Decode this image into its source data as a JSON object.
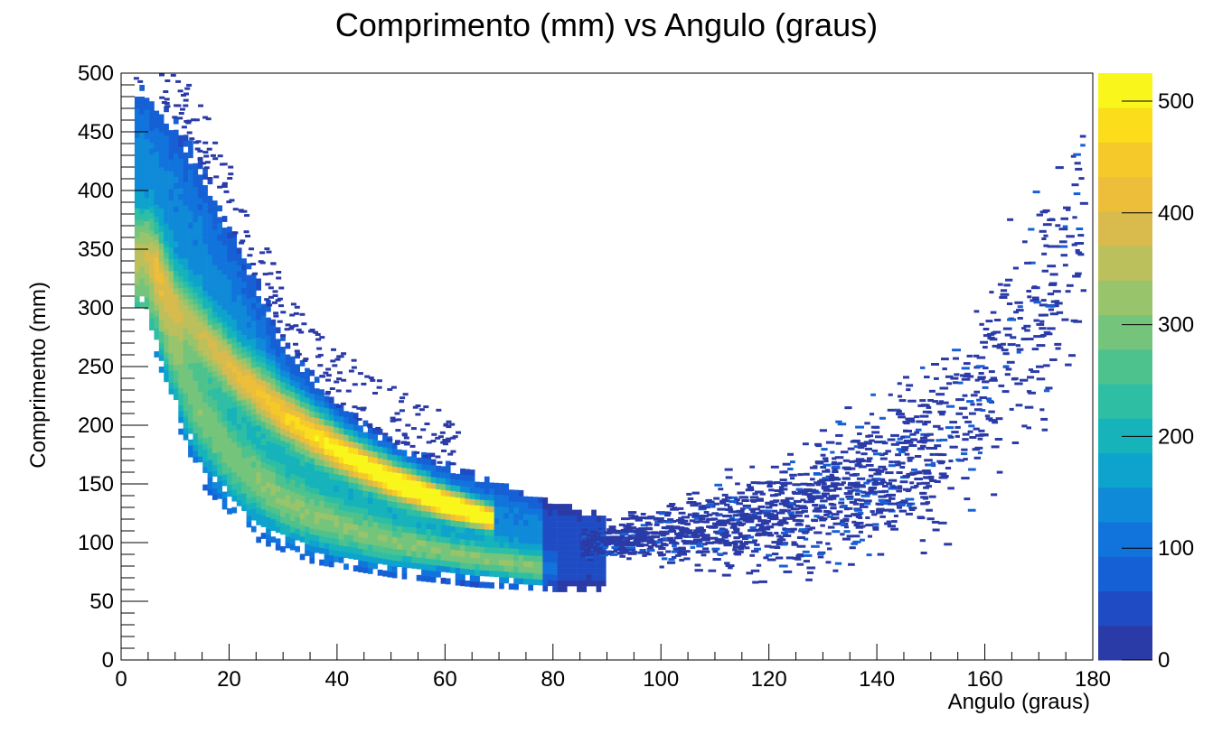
{
  "chart_data": {
    "type": "heatmap",
    "title": "Comprimento (mm) vs Angulo (graus)",
    "xlabel": "Angulo (graus)",
    "ylabel": "Comprimento (mm)",
    "xlim": [
      0,
      180
    ],
    "ylim": [
      0,
      500
    ],
    "x_ticks": [
      "0",
      "20",
      "40",
      "60",
      "80",
      "100",
      "120",
      "140",
      "160",
      "180"
    ],
    "y_ticks": [
      "0",
      "50",
      "100",
      "150",
      "200",
      "250",
      "300",
      "350",
      "400",
      "450",
      "500"
    ],
    "colorbar": {
      "range": [
        0,
        525
      ],
      "ticks": [
        "0",
        "100",
        "200",
        "300",
        "400",
        "500"
      ],
      "palette": [
        "#2a3aa6",
        "#1f4cc4",
        "#1660d6",
        "#1174dc",
        "#0f8ad8",
        "#0ea3cc",
        "#16b3bb",
        "#2ebea4",
        "#4ec28d",
        "#74c47c",
        "#98c46c",
        "#bbbf5c",
        "#d8bb4c",
        "#ecbe3a",
        "#f6c92a",
        "#fbdd1c",
        "#f8f61a"
      ]
    },
    "grid": false,
    "density_ridges": [
      {
        "name": "ridge-upper",
        "points": [
          [
            5,
            350
          ],
          [
            10,
            300
          ],
          [
            20,
            245
          ],
          [
            30,
            205
          ],
          [
            40,
            175
          ],
          [
            50,
            150
          ],
          [
            60,
            130
          ],
          [
            68,
            118
          ]
        ],
        "peak": 520
      },
      {
        "name": "ridge-lower",
        "points": [
          [
            6,
            300
          ],
          [
            12,
            220
          ],
          [
            20,
            165
          ],
          [
            30,
            130
          ],
          [
            40,
            110
          ],
          [
            50,
            97
          ],
          [
            60,
            88
          ],
          [
            70,
            80
          ],
          [
            78,
            74
          ]
        ],
        "peak": 260
      }
    ],
    "sparse_band": [
      [
        80,
        95
      ],
      [
        90,
        100
      ],
      [
        100,
        105
      ],
      [
        110,
        112
      ],
      [
        120,
        122
      ],
      [
        130,
        135
      ],
      [
        140,
        155
      ],
      [
        150,
        180
      ],
      [
        160,
        230
      ],
      [
        170,
        300
      ],
      [
        178,
        380
      ]
    ]
  }
}
